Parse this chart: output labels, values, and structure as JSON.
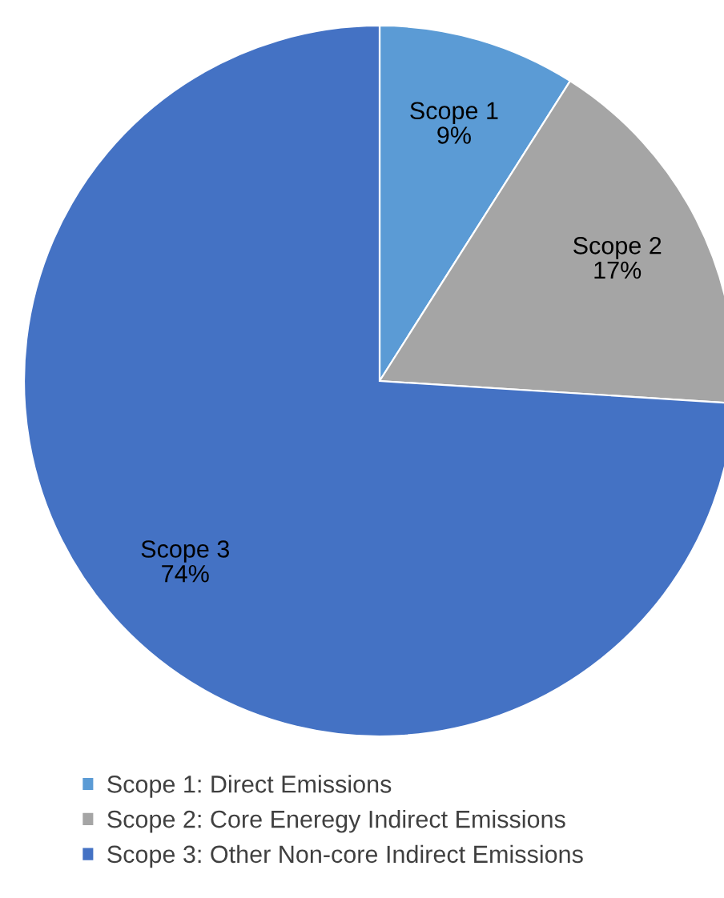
{
  "chart_data": {
    "type": "pie",
    "categories": [
      "Scope 1: Direct Emissions",
      "Scope 2: Core Eneregy Indirect Emissions",
      "Scope 3: Other Non-core Indirect Emissions"
    ],
    "values": [
      9,
      17,
      74
    ],
    "colors": [
      "#5b9bd5",
      "#a5a5a5",
      "#4472c4"
    ],
    "value_labels": [
      "Scope 1\n9%",
      "Scope 2\n17%",
      "Scope 3\n74%"
    ],
    "legend": "bottom"
  }
}
